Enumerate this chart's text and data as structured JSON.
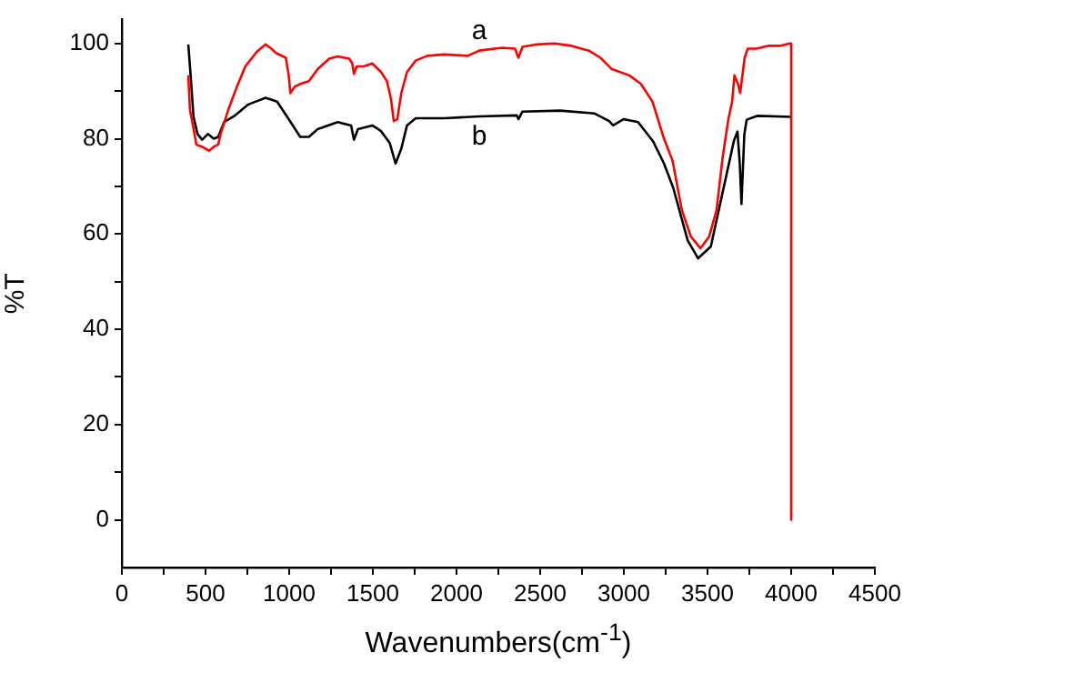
{
  "chart_data": {
    "type": "line",
    "xlabel": "Wavenumbers(cm$^{-1}$)",
    "ylabel": "%T",
    "xlim": [
      0,
      4500
    ],
    "ylim": [
      -10,
      105
    ],
    "xticks": [
      0,
      {
        "value": 250,
        "label": null
      },
      500,
      {
        "value": 750,
        "label": null
      },
      1000,
      {
        "value": 1250,
        "label": null
      },
      1500,
      {
        "value": 1750,
        "label": null
      },
      2000,
      {
        "value": 2250,
        "label": null
      },
      2500,
      {
        "value": 2750,
        "label": null
      },
      3000,
      {
        "value": 3250,
        "label": null
      },
      3500,
      {
        "value": 3750,
        "label": null
      },
      4000,
      {
        "value": 4250,
        "label": null
      },
      4500
    ],
    "yticks": [
      0,
      {
        "value": 10,
        "label": null
      },
      20,
      {
        "value": 30,
        "label": null
      },
      40,
      {
        "value": 50,
        "label": null
      },
      60,
      {
        "value": 70,
        "label": null
      },
      80,
      {
        "value": 90,
        "label": null
      },
      100
    ],
    "grid": false,
    "legend": false,
    "series": [
      {
        "name": "a",
        "color": "#ff0000",
        "x": [
          397,
          407,
          428,
          445,
          480,
          521,
          549,
          576,
          590,
          635,
          687,
          738,
          807,
          859,
          894,
          921,
          980,
          997,
          1007,
          1032,
          1066,
          1118,
          1170,
          1239,
          1290,
          1359,
          1377,
          1387,
          1404,
          1446,
          1497,
          1549,
          1584,
          1608,
          1625,
          1646,
          1670,
          1704,
          1756,
          1825,
          1929,
          2067,
          2136,
          2274,
          2350,
          2370,
          2394,
          2481,
          2584,
          2688,
          2791,
          2860,
          2929,
          3033,
          3102,
          3171,
          3240,
          3291,
          3347,
          3400,
          3458,
          3510,
          3554,
          3590,
          3624,
          3647,
          3661,
          3682,
          3695,
          3722,
          3740,
          3792,
          3861,
          3930,
          3992,
          4000,
          4000
        ],
        "values": [
          93.3,
          86,
          82.2,
          78.8,
          78.3,
          77.5,
          78.3,
          78.8,
          81,
          86,
          90.9,
          95.2,
          98.3,
          99.8,
          98.9,
          98,
          97,
          93.3,
          89.6,
          90.9,
          91.5,
          92.1,
          94.6,
          96.8,
          97.3,
          96.8,
          95.8,
          93.6,
          95.2,
          95.2,
          95.8,
          94,
          92.1,
          88.4,
          83.7,
          84.1,
          89.6,
          94,
          96.4,
          97.4,
          97.7,
          97.4,
          98.5,
          99.1,
          98.9,
          97,
          99.3,
          99.8,
          100,
          99.5,
          98.5,
          97,
          94.6,
          93.3,
          91.5,
          87.8,
          80,
          75.4,
          65,
          59.5,
          57,
          59.5,
          65,
          76,
          84,
          87.8,
          93.3,
          91.5,
          89.6,
          97,
          98.9,
          98.9,
          99.5,
          99.5,
          100,
          100,
          0
        ]
      },
      {
        "name": "b",
        "color": "#000000",
        "x": [
          397,
          411,
          428,
          452,
          480,
          514,
          549,
          576,
          611,
          669,
          756,
          859,
          928,
          997,
          1066,
          1118,
          1170,
          1290,
          1370,
          1387,
          1411,
          1497,
          1549,
          1601,
          1636,
          1670,
          1704,
          1756,
          1929,
          2136,
          2360,
          2370,
          2394,
          2619,
          2826,
          2912,
          2936,
          2998,
          3085,
          3174,
          3240,
          3295,
          3382,
          3444,
          3520,
          3589,
          3658,
          3679,
          3693,
          3703,
          3720,
          3734,
          3796,
          4000
        ],
        "values": [
          99.8,
          93.3,
          84.7,
          81,
          79.8,
          81,
          80,
          80.4,
          83.5,
          84.7,
          87.2,
          88.6,
          87.8,
          84.1,
          80.4,
          80.4,
          82,
          83.5,
          82.8,
          79.8,
          82,
          82.8,
          81.6,
          79.1,
          74.8,
          77.9,
          82.8,
          84.3,
          84.3,
          84.7,
          84.9,
          84.1,
          85.7,
          85.9,
          85.3,
          83.7,
          82.8,
          84.1,
          83.5,
          79.5,
          74.8,
          69.7,
          58.6,
          54.9,
          57.4,
          68.5,
          79.6,
          81.5,
          74.7,
          66.3,
          80.9,
          84,
          84.8,
          84.6
        ]
      }
    ]
  }
}
